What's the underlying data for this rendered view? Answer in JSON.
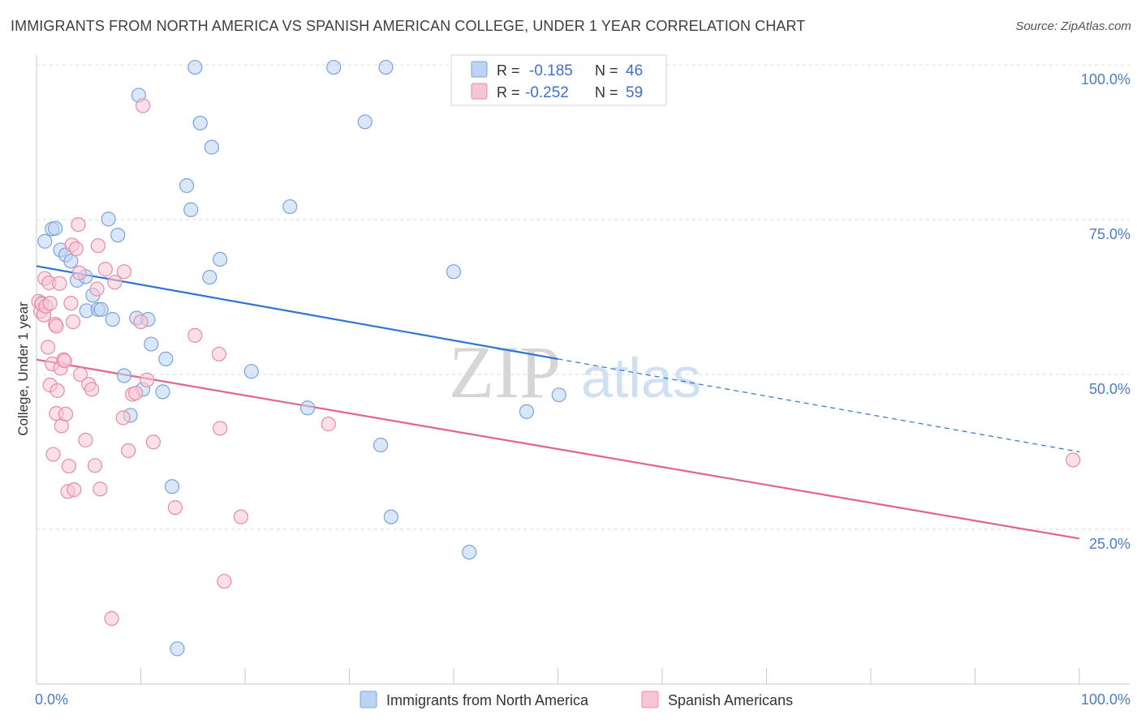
{
  "title": "IMMIGRANTS FROM NORTH AMERICA VS SPANISH AMERICAN COLLEGE, UNDER 1 YEAR CORRELATION CHART",
  "source": "Source: ZipAtlas.com",
  "watermark": {
    "zip": "ZIP",
    "atlas": "atlas"
  },
  "colors": {
    "blue_fill": "#bcd3f3",
    "blue_stroke": "#7aa3dd",
    "blue_line": "#2f74d0",
    "pink_fill": "#f7c6d6",
    "pink_stroke": "#e88aa9",
    "pink_line": "#e0648f",
    "grid": "#d9d9d9",
    "tick_text": "#4a7cc9"
  },
  "legend_top": {
    "rows": [
      {
        "r_label": "R =",
        "r_value": "-0.185",
        "n_label": "N =",
        "n_value": "46"
      },
      {
        "r_label": "R =",
        "r_value": "-0.252",
        "n_label": "N =",
        "n_value": "59"
      }
    ]
  },
  "legend_bottom": [
    "Immigrants from North America",
    "Spanish Americans"
  ],
  "chart_data": {
    "type": "scatter",
    "title": "IMMIGRANTS FROM NORTH AMERICA VS SPANISH AMERICAN COLLEGE, UNDER 1 YEAR CORRELATION CHART",
    "xlabel": "",
    "ylabel": "College, Under 1 year",
    "xlim": [
      0,
      100
    ],
    "ylim": [
      0,
      100
    ],
    "x_tick_labels": [
      "0.0%",
      "100.0%"
    ],
    "y_ticks": [
      25,
      50,
      75,
      100
    ],
    "y_tick_labels": [
      "25.0%",
      "50.0%",
      "75.0%",
      "100.0%"
    ],
    "grid": true,
    "legend_position": "top-center",
    "series": [
      {
        "name": "Immigrants from North America",
        "R": -0.185,
        "N": 46,
        "trend": {
          "x0": 0,
          "y0": 67.5,
          "x1": 50,
          "y1": 52.5,
          "dashed_to_x": 100,
          "dashed_to_y": 37.5
        },
        "points": [
          [
            0.8,
            71.5
          ],
          [
            1.5,
            73.5
          ],
          [
            1.8,
            73.6
          ],
          [
            2.3,
            70.1
          ],
          [
            2.8,
            69.3
          ],
          [
            3.3,
            68.3
          ],
          [
            3.9,
            65.2
          ],
          [
            4.7,
            65.8
          ],
          [
            4.8,
            60.3
          ],
          [
            5.4,
            62.8
          ],
          [
            5.9,
            60.5
          ],
          [
            6.2,
            60.5
          ],
          [
            6.9,
            75.1
          ],
          [
            7.8,
            72.5
          ],
          [
            7.3,
            58.9
          ],
          [
            8.4,
            49.8
          ],
          [
            9.0,
            43.4
          ],
          [
            9.6,
            59.1
          ],
          [
            9.8,
            95.1
          ],
          [
            10.2,
            47.6
          ],
          [
            10.7,
            58.9
          ],
          [
            11.0,
            54.9
          ],
          [
            12.1,
            47.2
          ],
          [
            12.4,
            52.5
          ],
          [
            13.0,
            31.9
          ],
          [
            13.5,
            5.7
          ],
          [
            14.4,
            80.5
          ],
          [
            14.8,
            76.6
          ],
          [
            15.2,
            99.6
          ],
          [
            15.7,
            90.6
          ],
          [
            16.8,
            86.7
          ],
          [
            16.6,
            65.7
          ],
          [
            17.6,
            68.6
          ],
          [
            20.6,
            50.5
          ],
          [
            24.3,
            77.1
          ],
          [
            26.0,
            44.6
          ],
          [
            28.5,
            99.6
          ],
          [
            31.5,
            90.8
          ],
          [
            33.0,
            38.6
          ],
          [
            33.5,
            99.6
          ],
          [
            34.0,
            27.0
          ],
          [
            40.0,
            66.6
          ],
          [
            41.5,
            21.3
          ],
          [
            47.0,
            44.0
          ],
          [
            50.1,
            46.7
          ],
          [
            0.5,
            61.5
          ]
        ]
      },
      {
        "name": "Spanish Americans",
        "R": -0.252,
        "N": 59,
        "trend": {
          "x0": 0,
          "y0": 52.4,
          "x1": 100,
          "y1": 23.5
        },
        "points": [
          [
            0.2,
            61.8
          ],
          [
            0.4,
            60.2
          ],
          [
            0.5,
            61.4
          ],
          [
            0.7,
            59.6
          ],
          [
            0.8,
            65.5
          ],
          [
            0.9,
            61.0
          ],
          [
            1.1,
            54.4
          ],
          [
            1.2,
            64.8
          ],
          [
            1.3,
            61.5
          ],
          [
            1.3,
            48.3
          ],
          [
            1.5,
            51.7
          ],
          [
            1.6,
            37.1
          ],
          [
            1.8,
            58.1
          ],
          [
            1.9,
            57.8
          ],
          [
            1.9,
            43.7
          ],
          [
            2.0,
            47.4
          ],
          [
            2.2,
            64.7
          ],
          [
            2.3,
            51.0
          ],
          [
            2.4,
            41.7
          ],
          [
            2.6,
            52.4
          ],
          [
            2.7,
            52.2
          ],
          [
            2.8,
            43.6
          ],
          [
            3.0,
            31.1
          ],
          [
            3.1,
            35.2
          ],
          [
            3.3,
            61.5
          ],
          [
            3.4,
            70.9
          ],
          [
            3.6,
            31.4
          ],
          [
            3.8,
            70.3
          ],
          [
            4.0,
            74.2
          ],
          [
            4.1,
            66.4
          ],
          [
            4.2,
            50.0
          ],
          [
            4.7,
            39.4
          ],
          [
            5.0,
            48.4
          ],
          [
            5.3,
            47.6
          ],
          [
            5.6,
            35.3
          ],
          [
            5.8,
            63.8
          ],
          [
            5.9,
            70.8
          ],
          [
            6.1,
            31.5
          ],
          [
            6.6,
            67.0
          ],
          [
            7.2,
            10.6
          ],
          [
            7.5,
            64.9
          ],
          [
            8.3,
            43.0
          ],
          [
            8.4,
            66.6
          ],
          [
            8.8,
            37.7
          ],
          [
            9.2,
            46.8
          ],
          [
            9.5,
            47.0
          ],
          [
            10.0,
            58.5
          ],
          [
            10.2,
            93.4
          ],
          [
            10.6,
            49.1
          ],
          [
            11.2,
            39.1
          ],
          [
            13.3,
            28.5
          ],
          [
            15.2,
            56.3
          ],
          [
            17.5,
            53.3
          ],
          [
            17.6,
            41.3
          ],
          [
            18.0,
            16.6
          ],
          [
            19.6,
            27.0
          ],
          [
            28.0,
            42.0
          ],
          [
            99.4,
            36.2
          ],
          [
            3.5,
            58.5
          ]
        ]
      }
    ]
  }
}
